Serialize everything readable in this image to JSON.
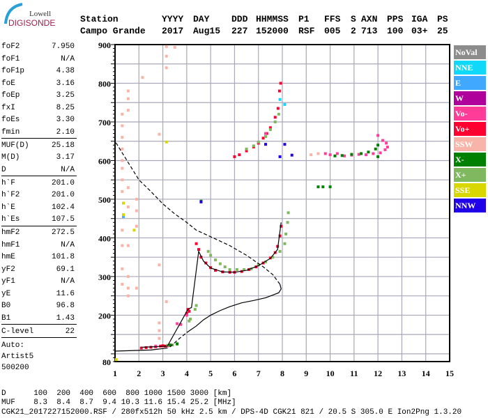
{
  "logo": {
    "line1": "Lowell",
    "line2": "DIGISONDE"
  },
  "header": [
    {
      "label": "Station",
      "value": "Campo Grande"
    },
    {
      "label": "YYYY",
      "value": "2017"
    },
    {
      "label": "DAY",
      "value": "Aug15"
    },
    {
      "label": "DDD",
      "value": "227"
    },
    {
      "label": "HHMMSS",
      "value": "152000"
    },
    {
      "label": "P1",
      "value": "RSF"
    },
    {
      "label": "FFS",
      "value": "005"
    },
    {
      "label": "S",
      "value": "2"
    },
    {
      "label": "AXN",
      "value": "713"
    },
    {
      "label": "PPS",
      "value": "100"
    },
    {
      "label": "IGA",
      "value": "03+"
    },
    {
      "label": "PS",
      "value": "25"
    }
  ],
  "params": [
    {
      "k": "foF2",
      "v": "7.950"
    },
    {
      "k": "foF1",
      "v": "N/A"
    },
    {
      "k": "foF1p",
      "v": "4.38"
    },
    {
      "k": "foE",
      "v": "3.16"
    },
    {
      "k": "foEp",
      "v": "3.25"
    },
    {
      "k": "fxI",
      "v": "8.25"
    },
    {
      "k": "foEs",
      "v": "3.30"
    },
    {
      "k": "fmin",
      "v": "2.10"
    },
    {
      "k": "MUF(D)",
      "v": "25.18"
    },
    {
      "k": "M(D)",
      "v": "3.17"
    },
    {
      "k": "D",
      "v": "N/A"
    },
    {
      "k": "h`F",
      "v": "201.0"
    },
    {
      "k": "h`F2",
      "v": "201.0"
    },
    {
      "k": "h`E",
      "v": "102.4"
    },
    {
      "k": "h`Es",
      "v": "107.5"
    },
    {
      "k": "hmF2",
      "v": "272.5"
    },
    {
      "k": "hmF1",
      "v": "N/A"
    },
    {
      "k": "hmE",
      "v": "101.8"
    },
    {
      "k": "yF2",
      "v": "69.1"
    },
    {
      "k": "yF1",
      "v": "N/A"
    },
    {
      "k": "yE",
      "v": "11.6"
    },
    {
      "k": "B0",
      "v": "96.8"
    },
    {
      "k": "B1",
      "v": "1.43"
    },
    {
      "k": "C-level",
      "v": "22"
    }
  ],
  "autoscale": {
    "line1": "Auto:",
    "line2": "Artist5",
    "line3": "500200"
  },
  "footer": {
    "d_row": "D      100  200  400  600  800 1000 1500 3000 [km]",
    "muf_row": "MUF    8.3  8.4  8.7  9.4 10.3 11.6 15.4 25.2 [MHz]",
    "file_row": "CGK21_2017227152000.RSF / 280fx512h 50 kHz 2.5 km / DPS-4D CGK21 821 / 20.5 S 305.0 E Ion2Png 1.3.20"
  },
  "legend": [
    {
      "label": "NoVal",
      "color": "#8c8c8c"
    },
    {
      "label": "NNE",
      "color": "#10d8f8"
    },
    {
      "label": "E",
      "color": "#40a8ff"
    },
    {
      "label": "W",
      "color": "#b0009c"
    },
    {
      "label": "Vo-",
      "color": "#ff3c98"
    },
    {
      "label": "Vo+",
      "color": "#ff0030"
    },
    {
      "label": "SSW",
      "color": "#f8b4a8"
    },
    {
      "label": "X-",
      "color": "#008000"
    },
    {
      "label": "X+",
      "color": "#80b860"
    },
    {
      "label": "SSE",
      "color": "#d8d800"
    },
    {
      "label": "NNW",
      "color": "#2000e8"
    }
  ],
  "chart_data": {
    "type": "scatter",
    "xlim": [
      1,
      15
    ],
    "ylim": [
      80,
      900
    ],
    "xticks": [
      "1",
      "2",
      "3",
      "4",
      "5",
      "6",
      "7",
      "8",
      "9",
      "10",
      "11",
      "12",
      "13",
      "14",
      "15"
    ],
    "yticks": [
      "80",
      "200",
      "300",
      "400",
      "500",
      "600",
      "700",
      "800",
      "900"
    ],
    "grid": true,
    "series": [
      {
        "name": "Vo+",
        "color": "#ff0030",
        "points": [
          [
            2.1,
            115
          ],
          [
            2.3,
            116
          ],
          [
            2.5,
            117
          ],
          [
            2.7,
            118
          ],
          [
            2.9,
            120
          ],
          [
            3.0,
            121
          ],
          [
            3.1,
            120
          ],
          [
            3.2,
            121
          ],
          [
            3.3,
            122
          ],
          [
            4.0,
            205
          ],
          [
            4.05,
            215
          ],
          [
            4.1,
            210
          ],
          [
            4.4,
            385
          ],
          [
            4.5,
            370
          ],
          [
            4.6,
            350
          ],
          [
            4.8,
            335
          ],
          [
            5.0,
            323
          ],
          [
            5.2,
            316
          ],
          [
            5.5,
            312
          ],
          [
            5.8,
            311
          ],
          [
            6.0,
            311
          ],
          [
            6.3,
            313
          ],
          [
            6.6,
            318
          ],
          [
            6.9,
            325
          ],
          [
            7.2,
            335
          ],
          [
            7.5,
            348
          ],
          [
            7.7,
            362
          ],
          [
            7.8,
            378
          ],
          [
            7.9,
            405
          ],
          [
            7.95,
            430
          ],
          [
            6.0,
            610
          ],
          [
            6.2,
            615
          ],
          [
            6.5,
            625
          ],
          [
            6.8,
            635
          ],
          [
            7.0,
            645
          ],
          [
            7.2,
            658
          ],
          [
            7.35,
            670
          ],
          [
            7.5,
            685
          ],
          [
            7.7,
            712
          ],
          [
            7.82,
            735
          ],
          [
            7.88,
            780
          ],
          [
            7.93,
            800
          ]
        ]
      },
      {
        "name": "Vo-",
        "color": "#ff3c98",
        "points": [
          [
            2.7,
            120
          ],
          [
            3.6,
            178
          ],
          [
            3.75,
            176
          ],
          [
            4.0,
            200
          ],
          [
            7.3,
            670
          ],
          [
            9.8,
            618
          ],
          [
            10.0,
            615
          ],
          [
            10.3,
            618
          ],
          [
            10.6,
            612
          ],
          [
            10.9,
            614
          ],
          [
            11.2,
            616
          ],
          [
            11.5,
            615
          ],
          [
            11.8,
            618
          ],
          [
            12.1,
            620
          ],
          [
            12.3,
            628
          ],
          [
            12.4,
            635
          ],
          [
            12.35,
            645
          ],
          [
            12.2,
            652
          ],
          [
            12.0,
            665
          ]
        ]
      },
      {
        "name": "X+",
        "color": "#80b860",
        "points": [
          [
            3.2,
            122
          ],
          [
            3.4,
            123
          ],
          [
            3.6,
            125
          ],
          [
            4.1,
            185
          ],
          [
            4.15,
            190
          ],
          [
            4.35,
            215
          ],
          [
            4.4,
            225
          ],
          [
            4.9,
            365
          ],
          [
            5.0,
            355
          ],
          [
            5.2,
            343
          ],
          [
            5.4,
            333
          ],
          [
            5.6,
            325
          ],
          [
            5.8,
            318
          ],
          [
            6.1,
            318
          ],
          [
            6.4,
            318
          ],
          [
            6.7,
            320
          ],
          [
            7.0,
            330
          ],
          [
            7.3,
            338
          ],
          [
            7.6,
            350
          ],
          [
            7.9,
            365
          ],
          [
            8.1,
            385
          ],
          [
            8.15,
            410
          ],
          [
            8.22,
            440
          ],
          [
            8.25,
            465
          ],
          [
            6.5,
            630
          ],
          [
            6.8,
            638
          ],
          [
            7.0,
            648
          ],
          [
            7.3,
            662
          ],
          [
            7.5,
            680
          ],
          [
            7.7,
            700
          ],
          [
            7.85,
            720
          ]
        ]
      },
      {
        "name": "X-",
        "color": "#008000",
        "points": [
          [
            3.3,
            123
          ],
          [
            3.6,
            126
          ],
          [
            4.6,
            495
          ],
          [
            10.2,
            612
          ],
          [
            10.5,
            613
          ],
          [
            10.9,
            616
          ],
          [
            11.3,
            618
          ],
          [
            11.6,
            622
          ],
          [
            11.9,
            630
          ],
          [
            12.0,
            610
          ],
          [
            9.5,
            532
          ],
          [
            9.7,
            532
          ],
          [
            10.0,
            532
          ],
          [
            12.0,
            640
          ]
        ]
      },
      {
        "name": "SSW",
        "color": "#f8b4a8",
        "points": [
          [
            1.3,
            280
          ],
          [
            1.3,
            320
          ],
          [
            1.3,
            380
          ],
          [
            1.3,
            420
          ],
          [
            1.3,
            520
          ],
          [
            1.3,
            550
          ],
          [
            1.3,
            580
          ],
          [
            1.3,
            600
          ],
          [
            1.3,
            630
          ],
          [
            1.3,
            660
          ],
          [
            1.3,
            690
          ],
          [
            1.3,
            720
          ],
          [
            1.55,
            250
          ],
          [
            1.55,
            270
          ],
          [
            1.55,
            300
          ],
          [
            1.55,
            380
          ],
          [
            1.55,
            480
          ],
          [
            1.55,
            530
          ],
          [
            1.55,
            730
          ],
          [
            1.55,
            760
          ],
          [
            1.55,
            780
          ],
          [
            1.9,
            270
          ],
          [
            1.9,
            430
          ],
          [
            1.9,
            470
          ],
          [
            1.9,
            500
          ],
          [
            2.15,
            815
          ],
          [
            2.85,
            140
          ],
          [
            2.85,
            160
          ],
          [
            2.85,
            180
          ],
          [
            2.85,
            330
          ],
          [
            2.85,
            668
          ],
          [
            3.15,
            235
          ],
          [
            3.15,
            840
          ],
          [
            3.15,
            870
          ],
          [
            3.15,
            895
          ],
          [
            3.5,
            893
          ],
          [
            9.2,
            615
          ],
          [
            9.5,
            618
          ]
        ]
      },
      {
        "name": "NNE",
        "color": "#10d8f8",
        "points": [
          [
            7.9,
            758
          ],
          [
            8.1,
            745
          ]
        ]
      },
      {
        "name": "E",
        "color": "#40a8ff",
        "points": [
          [
            1.35,
            455
          ]
        ]
      },
      {
        "name": "SSE",
        "color": "#d8d800",
        "points": [
          [
            1.35,
            490
          ],
          [
            1.35,
            460
          ],
          [
            1.8,
            420
          ],
          [
            3.15,
            648
          ],
          [
            1.05,
            85
          ]
        ]
      },
      {
        "name": "NNW",
        "color": "#2000e8",
        "points": [
          [
            7.3,
            642
          ],
          [
            7.9,
            610
          ],
          [
            8.1,
            642
          ],
          [
            8.4,
            614
          ],
          [
            4.6,
            493
          ]
        ]
      }
    ],
    "lines": [
      {
        "name": "trace-fit",
        "style": "solid",
        "points": [
          [
            3.2,
            121
          ],
          [
            4.05,
            215
          ],
          [
            4.2,
            220
          ],
          [
            4.5,
            365
          ],
          [
            4.7,
            340
          ],
          [
            5.0,
            322
          ],
          [
            5.5,
            312
          ],
          [
            6.0,
            311
          ],
          [
            6.5,
            316
          ],
          [
            7.0,
            328
          ],
          [
            7.5,
            347
          ],
          [
            7.8,
            370
          ],
          [
            7.95,
            440
          ]
        ]
      },
      {
        "name": "e-trace",
        "style": "solid",
        "points": [
          [
            2.1,
            117
          ],
          [
            3.2,
            120
          ]
        ]
      },
      {
        "name": "profile-low",
        "style": "solid",
        "points": [
          [
            1,
            107
          ],
          [
            2.5,
            110
          ],
          [
            3.2,
            115
          ]
        ]
      },
      {
        "name": "profile-dashed",
        "style": "dashed",
        "points": [
          [
            3.3,
            118
          ],
          [
            3.7,
            140
          ],
          [
            4.0,
            155
          ]
        ]
      },
      {
        "name": "profile",
        "style": "solid",
        "points": [
          [
            4.0,
            155
          ],
          [
            4.4,
            172
          ],
          [
            4.7,
            188
          ],
          [
            5.0,
            200
          ],
          [
            5.4,
            212
          ],
          [
            5.8,
            222
          ],
          [
            6.3,
            232
          ],
          [
            6.8,
            238
          ],
          [
            7.3,
            245
          ],
          [
            7.6,
            252
          ],
          [
            7.85,
            258
          ],
          [
            7.95,
            268
          ],
          [
            7.9,
            280
          ]
        ]
      },
      {
        "name": "model-dashed",
        "style": "dashed",
        "points": [
          [
            7.9,
            280
          ],
          [
            7.6,
            305
          ],
          [
            7.2,
            325
          ],
          [
            6.5,
            355
          ],
          [
            5.8,
            380
          ],
          [
            5.0,
            403
          ],
          [
            4.4,
            420
          ],
          [
            4.0,
            440
          ],
          [
            3.5,
            462
          ],
          [
            3.0,
            488
          ],
          [
            2.5,
            520
          ],
          [
            2.0,
            550
          ],
          [
            1.6,
            590
          ],
          [
            1.25,
            625
          ],
          [
            1,
            650
          ]
        ]
      }
    ]
  }
}
